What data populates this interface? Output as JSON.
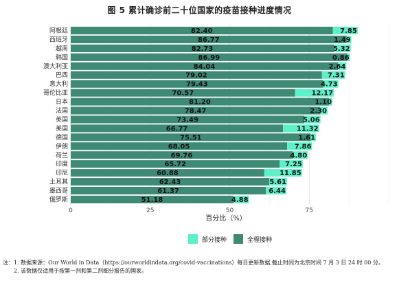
{
  "title": "图 5  累计确诊前二十位国家的疫苗接种进度情况",
  "chart_data": {
    "type": "bar",
    "orientation": "horizontal",
    "stacked": true,
    "title": "图 5  累计确诊前二十位国家的疫苗接种进度情况",
    "xlabel": "百分比（%）",
    "ylabel": "",
    "xlim": [
      0,
      100
    ],
    "xticks": [
      0,
      25,
      50,
      75
    ],
    "grid": true,
    "legend_position": "bottom-right",
    "categories": [
      "阿根廷",
      "西班牙",
      "越南",
      "韩国",
      "澳大利亚",
      "巴西",
      "意大利",
      "哥伦比亚",
      "日本",
      "法国",
      "英国",
      "美国",
      "德国",
      "伊朗",
      "荷兰",
      "印度",
      "印尼",
      "土耳其",
      "墨西哥",
      "俄罗斯"
    ],
    "series": [
      {
        "name": "全程接种",
        "color": "#3f8a74",
        "values": [
          82.4,
          86.77,
          82.73,
          86.99,
          84.04,
          79.02,
          79.43,
          70.57,
          81.2,
          78.47,
          73.49,
          66.77,
          75.51,
          68.05,
          69.76,
          65.72,
          60.88,
          62.43,
          61.37,
          51.18
        ]
      },
      {
        "name": "部分接种",
        "color": "#5ef0c8",
        "values": [
          7.85,
          1.49,
          5.32,
          0.86,
          2.64,
          7.31,
          4.73,
          12.17,
          1.1,
          2.3,
          5.06,
          11.32,
          1.61,
          7.86,
          4.8,
          7.25,
          11.85,
          5.61,
          6.44,
          4.88
        ]
      }
    ]
  },
  "legend": {
    "items": [
      {
        "label": "部分接种",
        "color": "#5ef0c8"
      },
      {
        "label": "全程接种",
        "color": "#3f8a74"
      }
    ]
  },
  "notes": [
    "注：1. 数据来源：Our World in Data（https://ourworldindata.org/covid-vaccinations）每日更新数据,截止时间为北京时间 7 月 3 日 24 时 00 分。",
    "2. 该数据仅适用于按第一剂和第二剂细分报告的国家。"
  ]
}
